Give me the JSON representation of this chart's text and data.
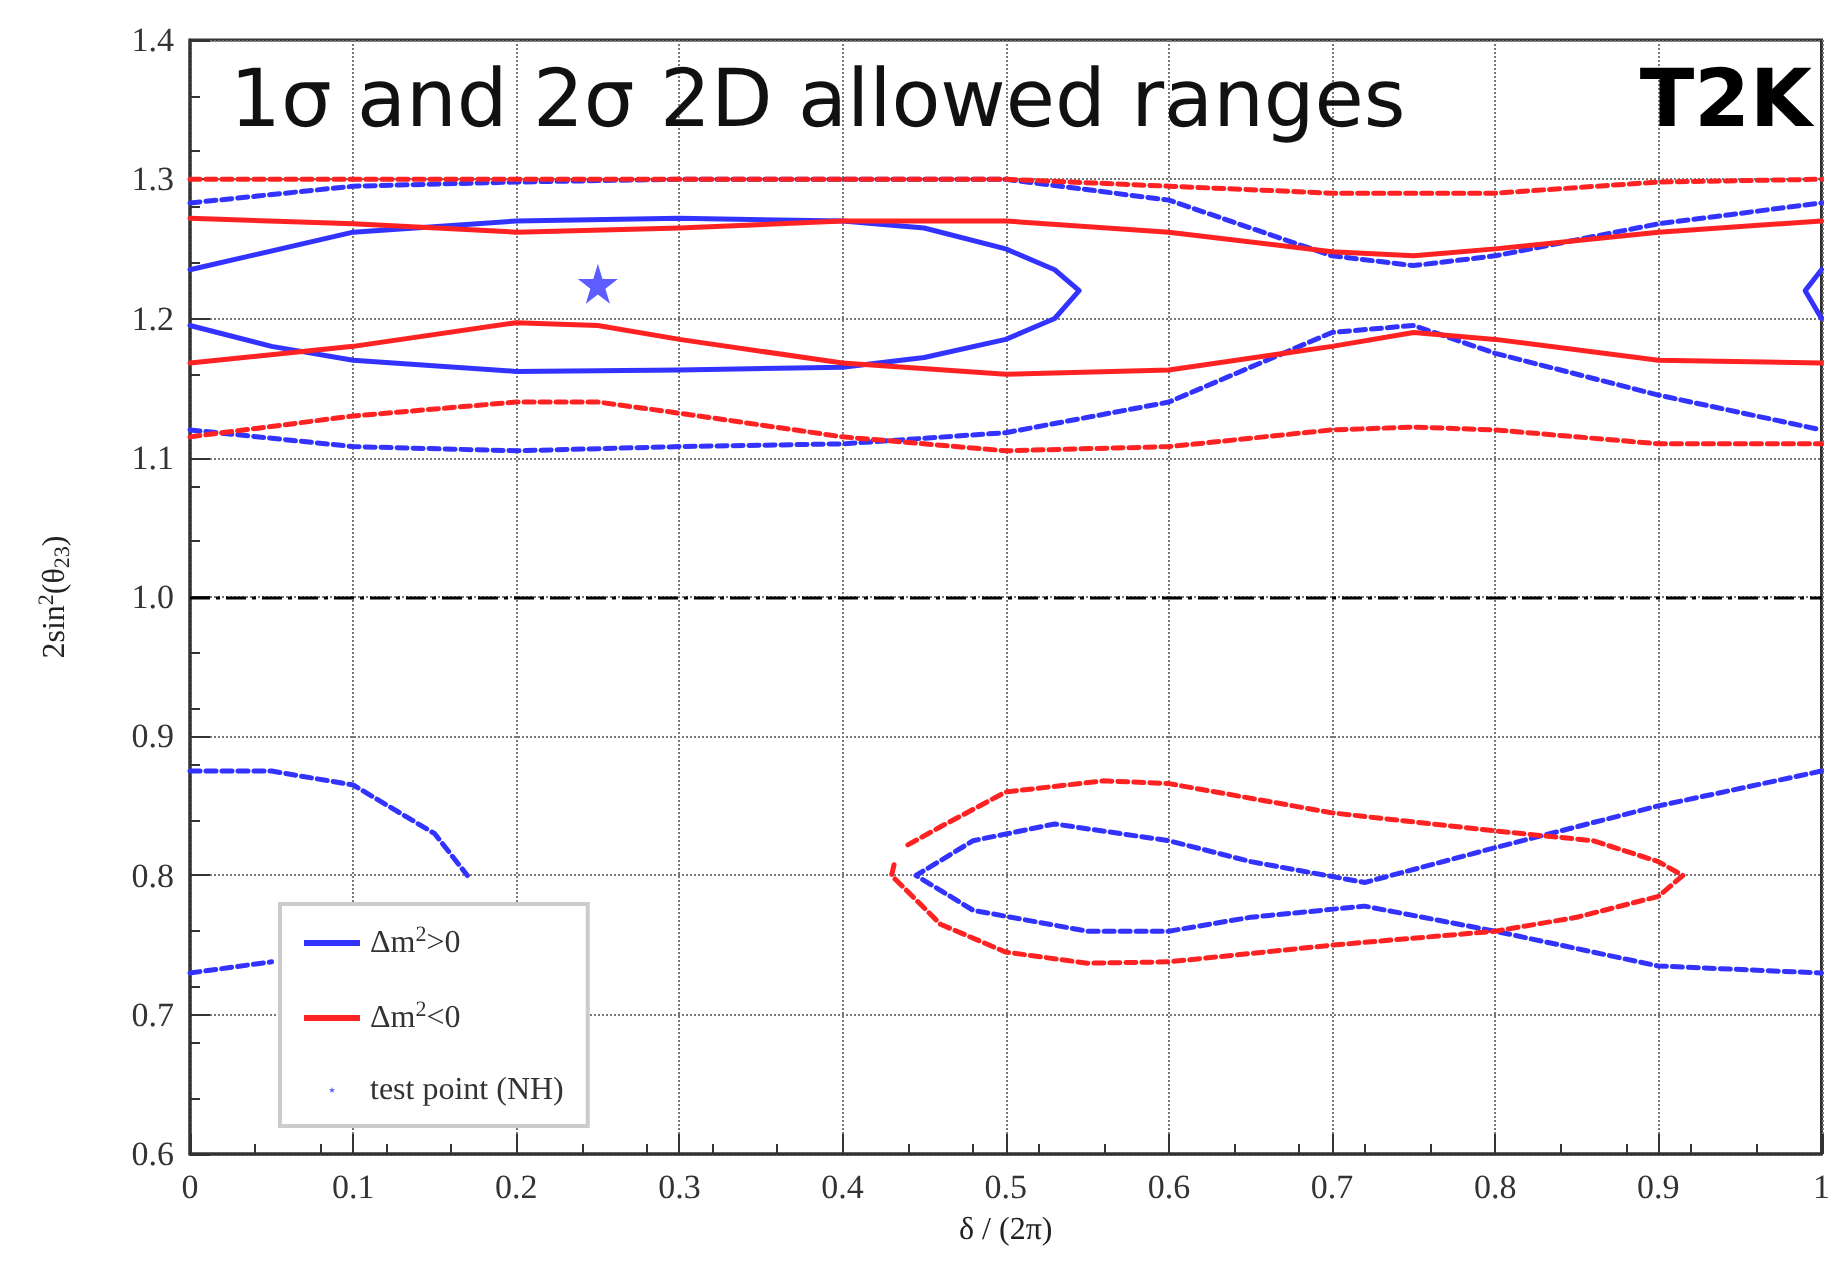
{
  "chart_data": {
    "type": "line",
    "title": "1σ and 2σ 2D allowed ranges",
    "xlabel": "δ / (2π)",
    "ylabel": "2sin$^{2}$(θ$_{23}$)",
    "annotations": [
      "T2K"
    ],
    "xlim": [
      0,
      1
    ],
    "ylim": [
      0.6,
      1.4
    ],
    "xticks": [
      0,
      0.1,
      0.2,
      0.3,
      0.4,
      0.5,
      0.6,
      0.7,
      0.8,
      0.9,
      1
    ],
    "yticks": [
      0.6,
      0.7,
      0.8,
      0.9,
      {
        "value": 1,
        "label": "1.0"
      },
      1.1,
      1.2,
      1.3,
      1.4
    ],
    "grid": true,
    "legend": "bottom left",
    "marker": "none",
    "ref_lines": [
      {
        "axis": "y",
        "value": 1,
        "color": "#000000",
        "line_style": "dashed"
      }
    ],
    "series": [
      {
        "name": "Δm$^{2}$>0",
        "color": "#3333ff",
        "line_style": "solid",
        "x": [
          0,
          0.1,
          0.2,
          0.3,
          0.4,
          0.45,
          0.5,
          0.53,
          0.545,
          0.53,
          0.5,
          0.45,
          0.4,
          0.3,
          0.2,
          0.1,
          0.05,
          0
        ],
        "values": [
          1.235,
          1.262,
          1.27,
          1.272,
          1.27,
          1.265,
          1.25,
          1.235,
          1.22,
          1.2,
          1.185,
          1.172,
          1.165,
          1.163,
          1.162,
          1.17,
          1.18,
          1.195
        ]
      },
      {
        "color": "#3333ff",
        "line_style": "solid",
        "x": [
          1,
          0.99,
          1
        ],
        "values": [
          1.235,
          1.22,
          1.2
        ]
      },
      {
        "color": "#3333ff",
        "line_style": "dashed",
        "x": [
          0,
          0.1,
          0.2,
          0.3,
          0.4,
          0.5,
          0.6,
          0.7,
          0.75,
          0.8,
          0.9,
          1
        ],
        "values": [
          1.283,
          1.295,
          1.298,
          1.3,
          1.3,
          1.3,
          1.285,
          1.245,
          1.238,
          1.245,
          1.268,
          1.283
        ]
      },
      {
        "color": "#3333ff",
        "line_style": "dashed",
        "x": [
          0,
          0.1,
          0.2,
          0.3,
          0.4,
          0.5,
          0.6,
          0.7,
          0.75,
          0.8,
          0.9,
          1
        ],
        "values": [
          1.12,
          1.108,
          1.105,
          1.108,
          1.11,
          1.118,
          1.14,
          1.19,
          1.195,
          1.175,
          1.145,
          1.12
        ]
      },
      {
        "color": "#3333ff",
        "line_style": "dashed",
        "x": [
          0,
          0.05,
          0.1,
          0.15,
          0.17
        ],
        "values": [
          0.875,
          0.875,
          0.865,
          0.83,
          0.8
        ]
      },
      {
        "color": "#3333ff",
        "line_style": "dashed",
        "x": [
          0,
          0.05
        ],
        "values": [
          0.73,
          0.738
        ]
      },
      {
        "color": "#3333ff",
        "line_style": "dashed",
        "x": [
          1,
          0.9,
          0.8,
          0.72,
          0.65,
          0.6,
          0.53,
          0.48,
          0.445,
          0.48,
          0.55,
          0.6,
          0.65,
          0.72,
          0.8,
          0.9,
          1
        ],
        "values": [
          0.875,
          0.85,
          0.82,
          0.795,
          0.81,
          0.825,
          0.837,
          0.825,
          0.8,
          0.775,
          0.76,
          0.76,
          0.77,
          0.778,
          0.76,
          0.735,
          0.73
        ]
      },
      {
        "name": "Δm$^{2}$<0",
        "color": "#ff2222",
        "line_style": "solid",
        "x": [
          0,
          0.1,
          0.2,
          0.3,
          0.4,
          0.5,
          0.6,
          0.7,
          0.75,
          0.8,
          0.9,
          1
        ],
        "values": [
          1.272,
          1.268,
          1.262,
          1.265,
          1.27,
          1.27,
          1.262,
          1.248,
          1.245,
          1.25,
          1.262,
          1.27
        ]
      },
      {
        "color": "#ff2222",
        "line_style": "solid",
        "x": [
          0,
          0.1,
          0.2,
          0.25,
          0.3,
          0.4,
          0.5,
          0.6,
          0.7,
          0.75,
          0.8,
          0.9,
          1
        ],
        "values": [
          1.168,
          1.18,
          1.197,
          1.195,
          1.185,
          1.168,
          1.16,
          1.163,
          1.18,
          1.19,
          1.185,
          1.17,
          1.168
        ]
      },
      {
        "color": "#ff2222",
        "line_style": "dashed",
        "x": [
          0,
          0.2,
          0.4,
          0.5,
          0.6,
          0.7,
          0.8,
          0.9,
          1
        ],
        "values": [
          1.3,
          1.3,
          1.3,
          1.3,
          1.295,
          1.29,
          1.29,
          1.298,
          1.3
        ]
      },
      {
        "color": "#ff2222",
        "line_style": "dashed",
        "x": [
          0,
          0.1,
          0.2,
          0.25,
          0.3,
          0.4,
          0.5,
          0.6,
          0.7,
          0.75,
          0.8,
          0.9,
          1
        ],
        "values": [
          1.115,
          1.13,
          1.14,
          1.14,
          1.132,
          1.115,
          1.105,
          1.108,
          1.12,
          1.122,
          1.12,
          1.11,
          1.11
        ]
      },
      {
        "color": "#ff2222",
        "line_style": "dashed",
        "x": [
          0.44,
          0.46,
          0.5,
          0.56,
          0.6,
          0.7,
          0.8,
          0.86,
          0.9,
          0.915,
          0.9,
          0.85,
          0.8,
          0.7,
          0.6,
          0.55,
          0.5,
          0.46,
          0.43,
          0.432
        ],
        "values": [
          0.822,
          0.835,
          0.86,
          0.868,
          0.866,
          0.845,
          0.832,
          0.825,
          0.81,
          0.8,
          0.785,
          0.77,
          0.76,
          0.75,
          0.738,
          0.737,
          0.745,
          0.765,
          0.8,
          0.81
        ]
      },
      {
        "name": "test point (NH)",
        "type": "scatter",
        "marker": "star",
        "color": "#3333ff",
        "x": [
          0.25
        ],
        "values": [
          1.225
        ]
      }
    ]
  }
}
